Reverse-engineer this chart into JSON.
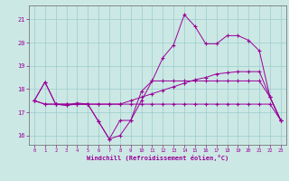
{
  "xlabel": "Windchill (Refroidissement éolien,°C)",
  "background_color": "#cce8e4",
  "grid_color": "#99cccc",
  "line_color": "#990099",
  "x_ticks": [
    0,
    1,
    2,
    3,
    4,
    5,
    6,
    7,
    8,
    9,
    10,
    11,
    12,
    13,
    14,
    15,
    16,
    17,
    18,
    19,
    20,
    21,
    22,
    23
  ],
  "y_ticks": [
    16,
    17,
    18,
    19,
    20,
    21
  ],
  "xlim": [
    -0.5,
    23.5
  ],
  "ylim": [
    15.6,
    21.6
  ],
  "curve_top": [
    17.5,
    18.3,
    17.35,
    17.3,
    17.35,
    17.35,
    16.6,
    15.85,
    16.65,
    16.65,
    17.9,
    18.35,
    19.35,
    19.9,
    21.2,
    20.7,
    19.95,
    19.95,
    20.3,
    20.3,
    20.1,
    19.65,
    17.65,
    16.65
  ],
  "curve_mid1": [
    17.5,
    18.3,
    17.35,
    17.3,
    17.4,
    17.35,
    16.6,
    15.85,
    16.0,
    16.65,
    17.5,
    18.35,
    18.35,
    18.35,
    18.35,
    18.35,
    18.35,
    18.35,
    18.35,
    18.35,
    18.35,
    18.35,
    17.65,
    16.65
  ],
  "curve_mid2": [
    17.5,
    17.35,
    17.35,
    17.35,
    17.35,
    17.35,
    17.35,
    17.35,
    17.35,
    17.5,
    17.65,
    17.8,
    17.95,
    18.1,
    18.25,
    18.4,
    18.5,
    18.65,
    18.7,
    18.75,
    18.75,
    18.75,
    17.65,
    16.65
  ],
  "curve_bot": [
    17.5,
    17.35,
    17.35,
    17.35,
    17.35,
    17.35,
    17.35,
    17.35,
    17.35,
    17.35,
    17.35,
    17.35,
    17.35,
    17.35,
    17.35,
    17.35,
    17.35,
    17.35,
    17.35,
    17.35,
    17.35,
    17.35,
    17.35,
    16.65
  ]
}
